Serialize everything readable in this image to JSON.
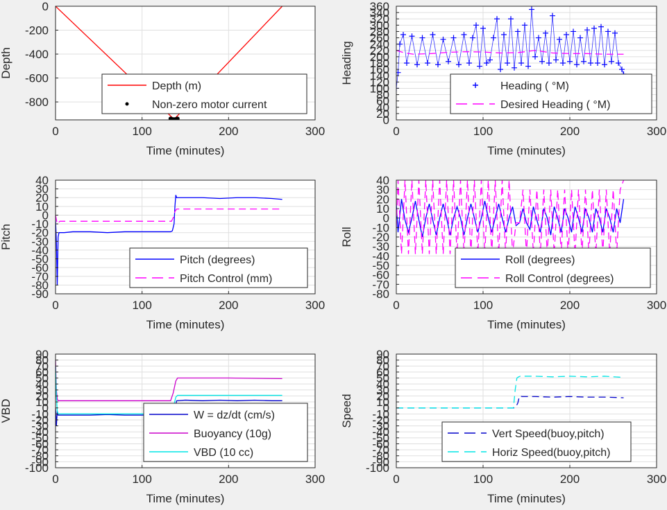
{
  "chart_data": [
    {
      "type": "line",
      "xlabel": "Time (minutes)",
      "ylabel": "Depth",
      "xlim": [
        0,
        300
      ],
      "ylim": [
        -950,
        0
      ],
      "xticks": [
        "0",
        "100",
        "200",
        "300"
      ],
      "yticks": [
        "0",
        "-200",
        "-400",
        "-600",
        "-800"
      ],
      "grid": true,
      "legend_position": "bottom-right",
      "series": [
        {
          "name": "Depth (m)",
          "style": "solid",
          "color": "#ff0000",
          "x": [
            0,
            137,
            262
          ],
          "y": [
            0,
            -945,
            0
          ]
        },
        {
          "name": "Non-zero motor current",
          "style": "dots",
          "color": "#000000",
          "x": [
            133,
            134,
            135,
            136,
            137,
            138,
            139,
            140,
            141
          ],
          "y": [
            -940,
            -943,
            -945,
            -946,
            -946,
            -946,
            -945,
            -943,
            -940
          ]
        }
      ]
    },
    {
      "type": "scatter",
      "xlabel": "Time (minutes)",
      "ylabel": "Heading",
      "xlim": [
        0,
        300
      ],
      "ylim": [
        0,
        360
      ],
      "xticks": [
        "0",
        "100",
        "200",
        "300"
      ],
      "yticks": [
        "0",
        "20",
        "40",
        "60",
        "80",
        "100",
        "120",
        "140",
        "160",
        "180",
        "200",
        "220",
        "240",
        "260",
        "280",
        "300",
        "320",
        "340",
        "360"
      ],
      "grid": true,
      "legend_position": "bottom-right",
      "series": [
        {
          "name": "Heading ( °M)",
          "style": "plus",
          "color": "#0000ff",
          "x": [
            0,
            2,
            4,
            8,
            12,
            18,
            24,
            30,
            36,
            42,
            48,
            54,
            60,
            66,
            72,
            78,
            84,
            88,
            92,
            96,
            100,
            104,
            108,
            112,
            116,
            120,
            124,
            128,
            132,
            136,
            140,
            144,
            148,
            152,
            156,
            160,
            164,
            168,
            172,
            176,
            180,
            184,
            188,
            192,
            196,
            200,
            204,
            208,
            212,
            216,
            220,
            224,
            228,
            232,
            236,
            240,
            244,
            248,
            252,
            256,
            260,
            262
          ],
          "y": [
            100,
            150,
            240,
            270,
            180,
            265,
            175,
            260,
            180,
            270,
            175,
            255,
            185,
            260,
            175,
            270,
            180,
            260,
            300,
            170,
            290,
            180,
            190,
            260,
            320,
            160,
            270,
            180,
            320,
            165,
            280,
            180,
            300,
            170,
            350,
            200,
            260,
            185,
            275,
            180,
            330,
            190,
            255,
            180,
            270,
            185,
            280,
            175,
            260,
            185,
            285,
            180,
            290,
            180,
            295,
            175,
            280,
            185,
            275,
            180,
            160,
            145
          ]
        },
        {
          "name": "Desired Heading ( °M)",
          "style": "dashed",
          "color": "#ff00ff",
          "x": [
            0,
            10,
            20,
            40,
            60,
            80,
            100,
            120,
            140,
            160,
            180,
            200,
            220,
            240,
            262
          ],
          "y": [
            220,
            212,
            208,
            210,
            214,
            216,
            215,
            212,
            213,
            220,
            212,
            210,
            210,
            208,
            208
          ]
        }
      ]
    },
    {
      "type": "line",
      "xlabel": "Time (minutes)",
      "ylabel": "Pitch",
      "xlim": [
        0,
        300
      ],
      "ylim": [
        -90,
        40
      ],
      "xticks": [
        "0",
        "100",
        "200",
        "300"
      ],
      "yticks": [
        "40",
        "30",
        "20",
        "10",
        "0",
        "-10",
        "-20",
        "-30",
        "-40",
        "-50",
        "-60",
        "-70",
        "-80",
        "-90"
      ],
      "grid": true,
      "legend_position": "bottom-right",
      "series": [
        {
          "name": "Pitch (degrees)",
          "style": "solid",
          "color": "#0000ff",
          "x": [
            0,
            1,
            2,
            3,
            4,
            10,
            20,
            40,
            60,
            80,
            100,
            120,
            133,
            135,
            137,
            138,
            139,
            140,
            150,
            170,
            190,
            210,
            230,
            250,
            262
          ],
          "y": [
            -5,
            -30,
            -80,
            -25,
            -20,
            -20,
            -19,
            -19,
            -20,
            -19,
            -19,
            -19,
            -19,
            -18,
            -10,
            10,
            23,
            20,
            20,
            20,
            19,
            20,
            20,
            19,
            18
          ]
        },
        {
          "name": "Pitch Control (mm)",
          "style": "dashed",
          "color": "#ff00ff",
          "x": [
            0,
            2,
            5,
            10,
            60,
            110,
            134,
            136,
            138,
            140,
            200,
            262
          ],
          "y": [
            0,
            -10,
            -7,
            -7,
            -7,
            -7,
            -7,
            -3,
            4,
            7,
            7,
            7
          ]
        }
      ]
    },
    {
      "type": "line",
      "xlabel": "Time (minutes)",
      "ylabel": "Roll",
      "xlim": [
        0,
        300
      ],
      "ylim": [
        -80,
        40
      ],
      "xticks": [
        "0",
        "100",
        "200",
        "300"
      ],
      "yticks": [
        "40",
        "30",
        "20",
        "10",
        "0",
        "-10",
        "-20",
        "-30",
        "-40",
        "-50",
        "-60",
        "-70",
        "-80"
      ],
      "grid": true,
      "legend_position": "bottom-right",
      "series": [
        {
          "name": "Roll (degrees)",
          "style": "solid",
          "color": "#0000ff",
          "x": [
            0,
            2,
            6,
            10,
            14,
            18,
            22,
            26,
            30,
            34,
            38,
            42,
            46,
            50,
            54,
            58,
            62,
            66,
            70,
            74,
            78,
            82,
            86,
            90,
            94,
            98,
            102,
            106,
            110,
            114,
            118,
            122,
            126,
            130,
            134,
            138,
            142,
            146,
            150,
            154,
            158,
            162,
            166,
            170,
            174,
            178,
            182,
            186,
            190,
            194,
            198,
            202,
            206,
            210,
            214,
            218,
            222,
            226,
            230,
            234,
            238,
            242,
            246,
            250,
            254,
            258,
            262
          ],
          "y": [
            15,
            -15,
            20,
            -2,
            -15,
            0,
            18,
            -2,
            -20,
            0,
            15,
            -2,
            -18,
            0,
            15,
            0,
            -18,
            0,
            12,
            0,
            -18,
            0,
            15,
            0,
            -15,
            0,
            18,
            0,
            -15,
            0,
            15,
            0,
            -15,
            0,
            12,
            -8,
            -5,
            10,
            -5,
            -12,
            12,
            -2,
            -15,
            10,
            0,
            -18,
            12,
            0,
            -15,
            10,
            0,
            -15,
            12,
            0,
            -15,
            10,
            0,
            -15,
            10,
            0,
            -15,
            10,
            0,
            -15,
            10,
            -5,
            20
          ]
        },
        {
          "name": "Roll Control (degrees)",
          "style": "dashed",
          "color": "#ff00ff",
          "x": [
            0,
            2,
            6,
            10,
            14,
            18,
            22,
            26,
            30,
            34,
            38,
            42,
            46,
            50,
            54,
            58,
            62,
            66,
            70,
            74,
            78,
            82,
            86,
            90,
            94,
            98,
            102,
            106,
            110,
            114,
            118,
            122,
            126,
            130,
            134,
            138,
            142,
            146,
            150,
            154,
            158,
            162,
            166,
            170,
            174,
            178,
            182,
            186,
            190,
            194,
            198,
            202,
            206,
            210,
            214,
            218,
            222,
            226,
            230,
            234,
            238,
            242,
            246,
            250,
            254,
            258,
            262
          ],
          "y": [
            -10,
            40,
            -38,
            40,
            -38,
            40,
            -38,
            40,
            -38,
            40,
            -38,
            40,
            -38,
            40,
            -38,
            40,
            -38,
            40,
            -38,
            40,
            -38,
            40,
            -38,
            40,
            -38,
            40,
            -38,
            40,
            -38,
            40,
            -38,
            40,
            -38,
            40,
            -38,
            -5,
            -5,
            30,
            -38,
            30,
            -38,
            30,
            -38,
            30,
            -38,
            30,
            -38,
            30,
            -38,
            30,
            -38,
            30,
            -38,
            30,
            -38,
            30,
            -38,
            30,
            -38,
            30,
            -38,
            30,
            -38,
            30,
            -38,
            30,
            40
          ]
        }
      ]
    },
    {
      "type": "line",
      "xlabel": "Time (minutes)",
      "ylabel": "VBD",
      "xlim": [
        0,
        300
      ],
      "ylim": [
        -100,
        90
      ],
      "xticks": [
        "0",
        "100",
        "200",
        "300"
      ],
      "yticks": [
        "90",
        "80",
        "70",
        "60",
        "50",
        "40",
        "30",
        "20",
        "10",
        "0",
        "-10",
        "-20",
        "-30",
        "-40",
        "-50",
        "-60",
        "-70",
        "-80",
        "-90",
        "-100"
      ],
      "grid": true,
      "legend_position": "bottom-right",
      "series": [
        {
          "name": "W = dz/dt (cm/s)",
          "style": "solid",
          "color": "#0000cc",
          "x": [
            0,
            1,
            2,
            3,
            5,
            20,
            40,
            60,
            80,
            100,
            120,
            133,
            136,
            138,
            140,
            150,
            170,
            190,
            210,
            230,
            250,
            262
          ],
          "y": [
            0,
            -30,
            -5,
            -12,
            -12,
            -12,
            -12,
            -11,
            -12,
            -12,
            -11,
            -12,
            -10,
            0,
            12,
            13,
            12,
            13,
            12,
            13,
            12,
            12
          ]
        },
        {
          "name": "Buoyancy (10g)",
          "style": "solid",
          "color": "#cc00cc",
          "x": [
            0,
            1,
            2,
            3,
            10,
            60,
            133,
            136,
            139,
            141,
            200,
            262
          ],
          "y": [
            80,
            30,
            15,
            12,
            12,
            12,
            12,
            25,
            45,
            50,
            50,
            49
          ]
        },
        {
          "name": "VBD (10 cc)",
          "style": "solid",
          "color": "#00e5e5",
          "x": [
            0,
            1,
            2,
            3,
            10,
            60,
            133,
            136,
            139,
            141,
            200,
            262
          ],
          "y": [
            70,
            20,
            -5,
            -10,
            -10,
            -10,
            -10,
            0,
            18,
            21,
            21,
            21
          ]
        }
      ]
    },
    {
      "type": "line",
      "xlabel": "Time (minutes)",
      "ylabel": "Speed",
      "xlim": [
        0,
        300
      ],
      "ylim": [
        -100,
        90
      ],
      "xticks": [
        "0",
        "100",
        "200",
        "300"
      ],
      "yticks": [
        "90",
        "80",
        "70",
        "60",
        "50",
        "40",
        "30",
        "20",
        "10",
        "0",
        "-10",
        "-20",
        "-30",
        "-40",
        "-50",
        "-60",
        "-70",
        "-80",
        "-90",
        "-100"
      ],
      "grid": true,
      "legend_position": "bottom-right",
      "series": [
        {
          "name": "Vert Speed(buoy,pitch)",
          "style": "dashed",
          "color": "#0000cc",
          "x": [
            0,
            100,
            137,
            140,
            142,
            145,
            160,
            180,
            200,
            220,
            240,
            262
          ],
          "y": [
            0,
            0,
            0,
            8,
            20,
            19,
            19,
            18,
            19,
            18,
            18,
            17
          ]
        },
        {
          "name": "Horiz Speed(buoy,pitch)",
          "style": "dashed",
          "color": "#00e5e5",
          "x": [
            0,
            100,
            135,
            137,
            139,
            141,
            143,
            160,
            180,
            200,
            220,
            240,
            262
          ],
          "y": [
            0,
            0,
            0,
            30,
            50,
            52,
            53,
            53,
            52,
            53,
            52,
            53,
            51
          ]
        }
      ]
    }
  ]
}
